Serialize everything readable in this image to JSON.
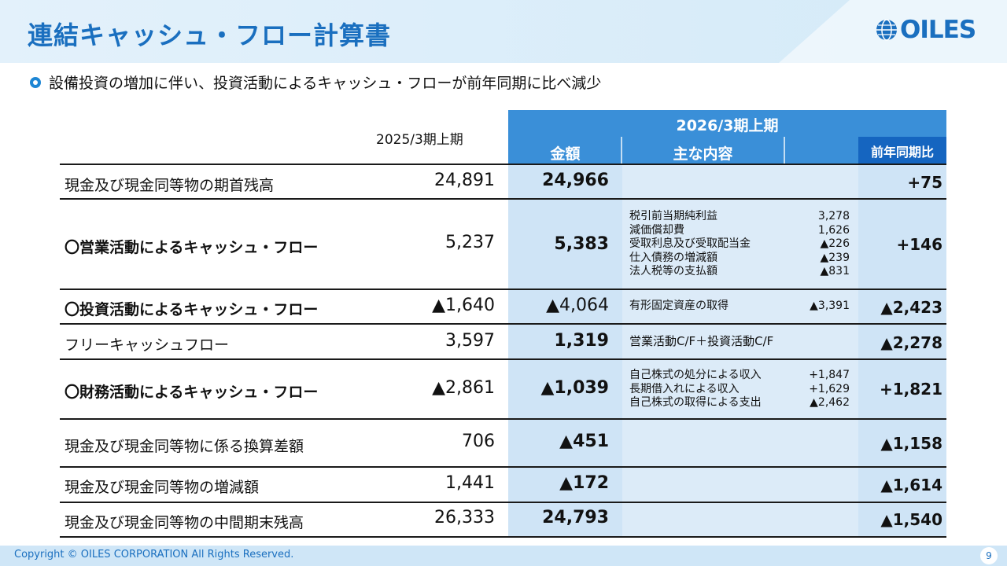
{
  "title": "連結キャッシュ・フロー計算書",
  "logo_text": "OILES",
  "subtitle": "設備投資の増加に伴い、投資活動によるキャッシュ・フローが前年同期に比べ減少",
  "headers": {
    "prev_period": "2025/3期上期",
    "cur_period": "2026/3期上期",
    "amount": "金額",
    "main_contents": "主な内容",
    "yoy": "前年同期比"
  },
  "rows": [
    {
      "label": "現金及び現金同等物の期首残高",
      "prev": "24,891",
      "cur": "24,966",
      "details": [],
      "note": "",
      "diff": "+75"
    },
    {
      "label": "〇営業活動によるキャッシュ・フロー",
      "prev": "5,237",
      "cur": "5,383",
      "details": [
        {
          "name": "税引前当期純利益",
          "value": "3,278"
        },
        {
          "name": "減価償却費",
          "value": "1,626"
        },
        {
          "name": "受取利息及び受取配当金",
          "value": "▲226"
        },
        {
          "name": "仕入債務の増減額",
          "value": "▲239"
        },
        {
          "name": "法人税等の支払額",
          "value": "▲831"
        }
      ],
      "note": "",
      "diff": "+146"
    },
    {
      "label": "〇投資活動によるキャッシュ・フロー",
      "prev": "▲1,640",
      "cur": "▲4,064",
      "details": [
        {
          "name": "有形固定資産の取得",
          "value": "▲3,391"
        }
      ],
      "note": "",
      "diff": "▲2,423"
    },
    {
      "label": "フリーキャッシュフロー",
      "prev": "3,597",
      "cur": "1,319",
      "details": [],
      "note": "営業活動C/F＋投資活動C/F",
      "diff": "▲2,278"
    },
    {
      "label": "〇財務活動によるキャッシュ・フロー",
      "prev": "▲2,861",
      "cur": "▲1,039",
      "details": [
        {
          "name": "自己株式の処分による収入",
          "value": "+1,847"
        },
        {
          "name": "長期借入れによる収入",
          "value": "+1,629"
        },
        {
          "name": "自己株式の取得による支出",
          "value": "▲2,462"
        }
      ],
      "note": "",
      "diff": "+1,821"
    },
    {
      "label": "現金及び現金同等物に係る換算差額",
      "prev": "706",
      "cur": "▲451",
      "details": [],
      "note": "",
      "diff": "▲1,158"
    },
    {
      "label": "現金及び現金同等物の増減額",
      "prev": "1,441",
      "cur": "▲172",
      "details": [],
      "note": "",
      "diff": "▲1,614"
    },
    {
      "label": "現金及び現金同等物の中間期末残高",
      "prev": "26,333",
      "cur": "24,793",
      "details": [],
      "note": "",
      "diff": "▲1,540"
    }
  ],
  "footer": {
    "copyright": "Copyright © OILES CORPORATION All Rights Reserved.",
    "page": "9"
  }
}
